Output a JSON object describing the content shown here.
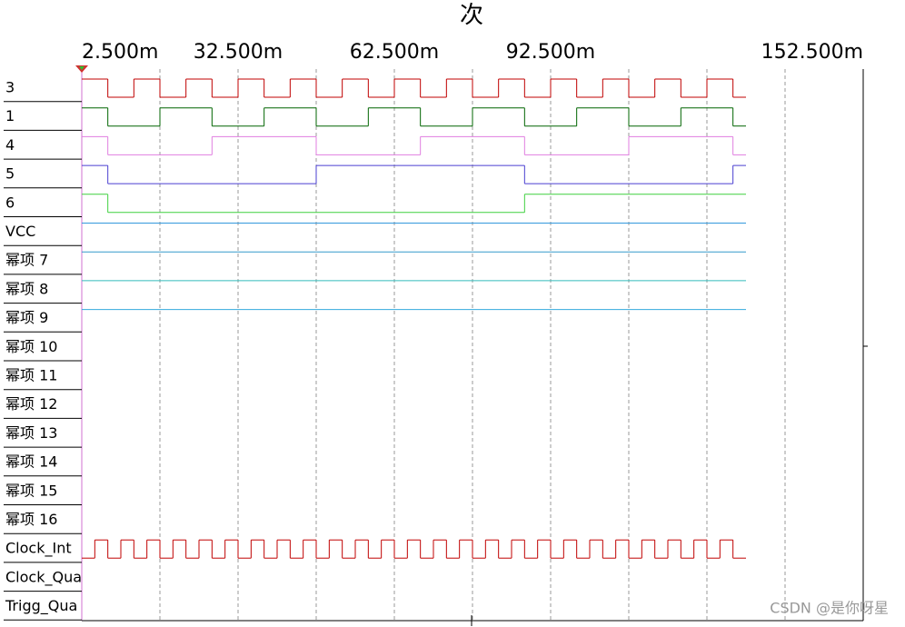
{
  "chart_data": {
    "type": "timing",
    "title": "次",
    "xlim": [
      2.5,
      152.5
    ],
    "xticks": [
      {
        "value": 2.5,
        "label": "2.500m"
      },
      {
        "value": 17.5,
        "label": null
      },
      {
        "value": 32.5,
        "label": "32.500m"
      },
      {
        "value": 47.5,
        "label": null
      },
      {
        "value": 62.5,
        "label": "62.500m"
      },
      {
        "value": 77.5,
        "label": null
      },
      {
        "value": 92.5,
        "label": "92.500m"
      },
      {
        "value": 107.5,
        "label": null
      },
      {
        "value": 122.5,
        "label": null
      },
      {
        "value": 137.5,
        "label": null
      },
      {
        "value": 152.5,
        "label": "152.500m"
      }
    ],
    "grid": true,
    "end": 130,
    "series": [
      {
        "name": "3",
        "color": "#c00000",
        "initial": 1,
        "edges": [
          7.5,
          12.5,
          17.5,
          22.5,
          27.5,
          32.5,
          37.5,
          42.5,
          47.5,
          52.5,
          57.5,
          62.5,
          67.5,
          72.5,
          77.5,
          82.5,
          87.5,
          92.5,
          97.5,
          102.5,
          107.5,
          112.5,
          117.5,
          122.5,
          127.5
        ]
      },
      {
        "name": "1",
        "color": "#006400",
        "initial": 1,
        "edges": [
          7.5,
          17.5,
          27.5,
          37.5,
          47.5,
          57.5,
          67.5,
          77.5,
          87.5,
          97.5,
          107.5,
          117.5,
          127.5
        ]
      },
      {
        "name": "4",
        "color": "#e07ee0",
        "initial": 1,
        "edges": [
          7.5,
          27.5,
          47.5,
          67.5,
          87.5,
          107.5,
          127.5
        ]
      },
      {
        "name": "5",
        "color": "#4a3fd0",
        "initial": 1,
        "edges": [
          7.5,
          47.5,
          87.5,
          127.5
        ]
      },
      {
        "name": "6",
        "color": "#3fd03f",
        "initial": 1,
        "edges": [
          7.5,
          87.5
        ]
      },
      {
        "name": "VCC",
        "color": "#3399dd",
        "initial": 1,
        "edges": []
      },
      {
        "name": "幂项 7",
        "color": "#3399cc",
        "initial": 1,
        "edges": []
      },
      {
        "name": "幂项 8",
        "color": "#33bbbb",
        "initial": 1,
        "edges": []
      },
      {
        "name": "幂项 9",
        "color": "#33aadd",
        "initial": 1,
        "edges": []
      },
      {
        "name": "幂项 10"
      },
      {
        "name": "幂项 11"
      },
      {
        "name": "幂项 12"
      },
      {
        "name": "幂项 13"
      },
      {
        "name": "幂项 14"
      },
      {
        "name": "幂项 15"
      },
      {
        "name": "幂项 16"
      },
      {
        "name": "Clock_Int",
        "color": "#c00000",
        "initial": 0,
        "edges": [
          5,
          7.5,
          10,
          12.5,
          15,
          17.5,
          20,
          22.5,
          25,
          27.5,
          30,
          32.5,
          35,
          37.5,
          40,
          42.5,
          45,
          47.5,
          50,
          52.5,
          55,
          57.5,
          60,
          62.5,
          65,
          67.5,
          70,
          72.5,
          75,
          77.5,
          80,
          82.5,
          85,
          87.5,
          90,
          92.5,
          95,
          97.5,
          100,
          102.5,
          105,
          107.5,
          110,
          112.5,
          115,
          117.5,
          120,
          122.5,
          125,
          127.5
        ]
      },
      {
        "name": "Clock_Qua"
      },
      {
        "name": "Trigg_Qua"
      }
    ]
  },
  "watermark": "CSDN @是你呀星"
}
